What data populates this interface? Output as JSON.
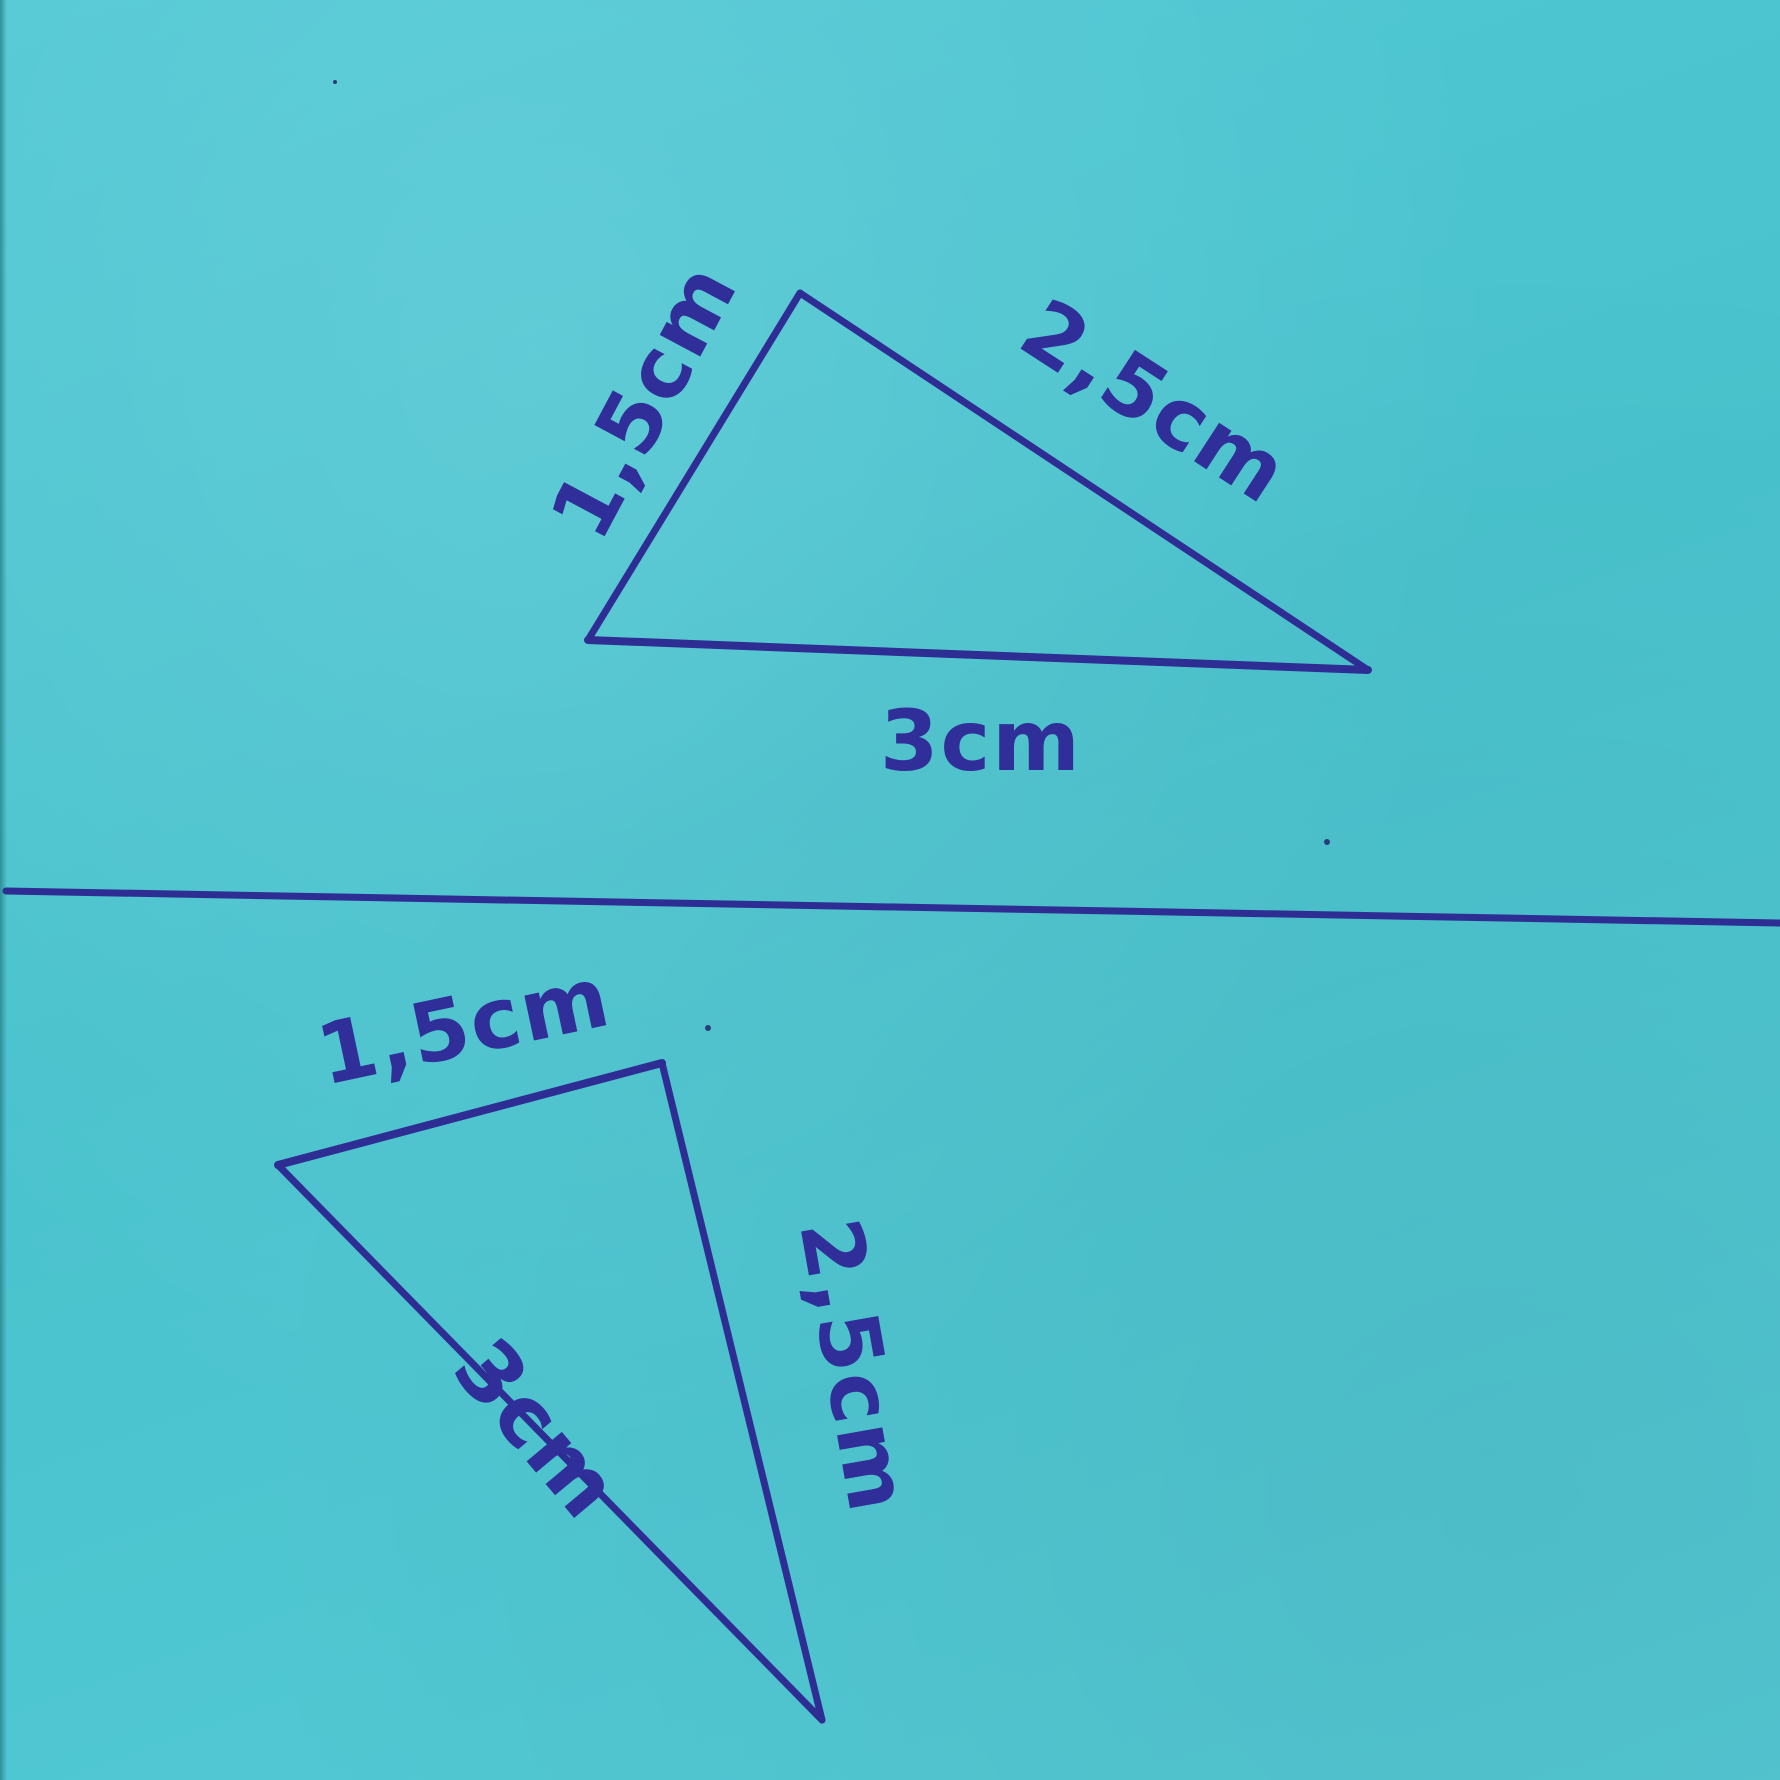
{
  "image": {
    "subject": "handwritten-triangles-on-blue-paper",
    "paper_color": "#4fc8d3",
    "ink_color": "#2e2d94"
  },
  "top_triangle": {
    "side_left": "1,5cm",
    "side_right": "2,5cm",
    "side_bottom": "3cm"
  },
  "bottom_triangle": {
    "side_top": "1,5cm",
    "side_right": "2,5cm",
    "side_left": "3cm"
  }
}
